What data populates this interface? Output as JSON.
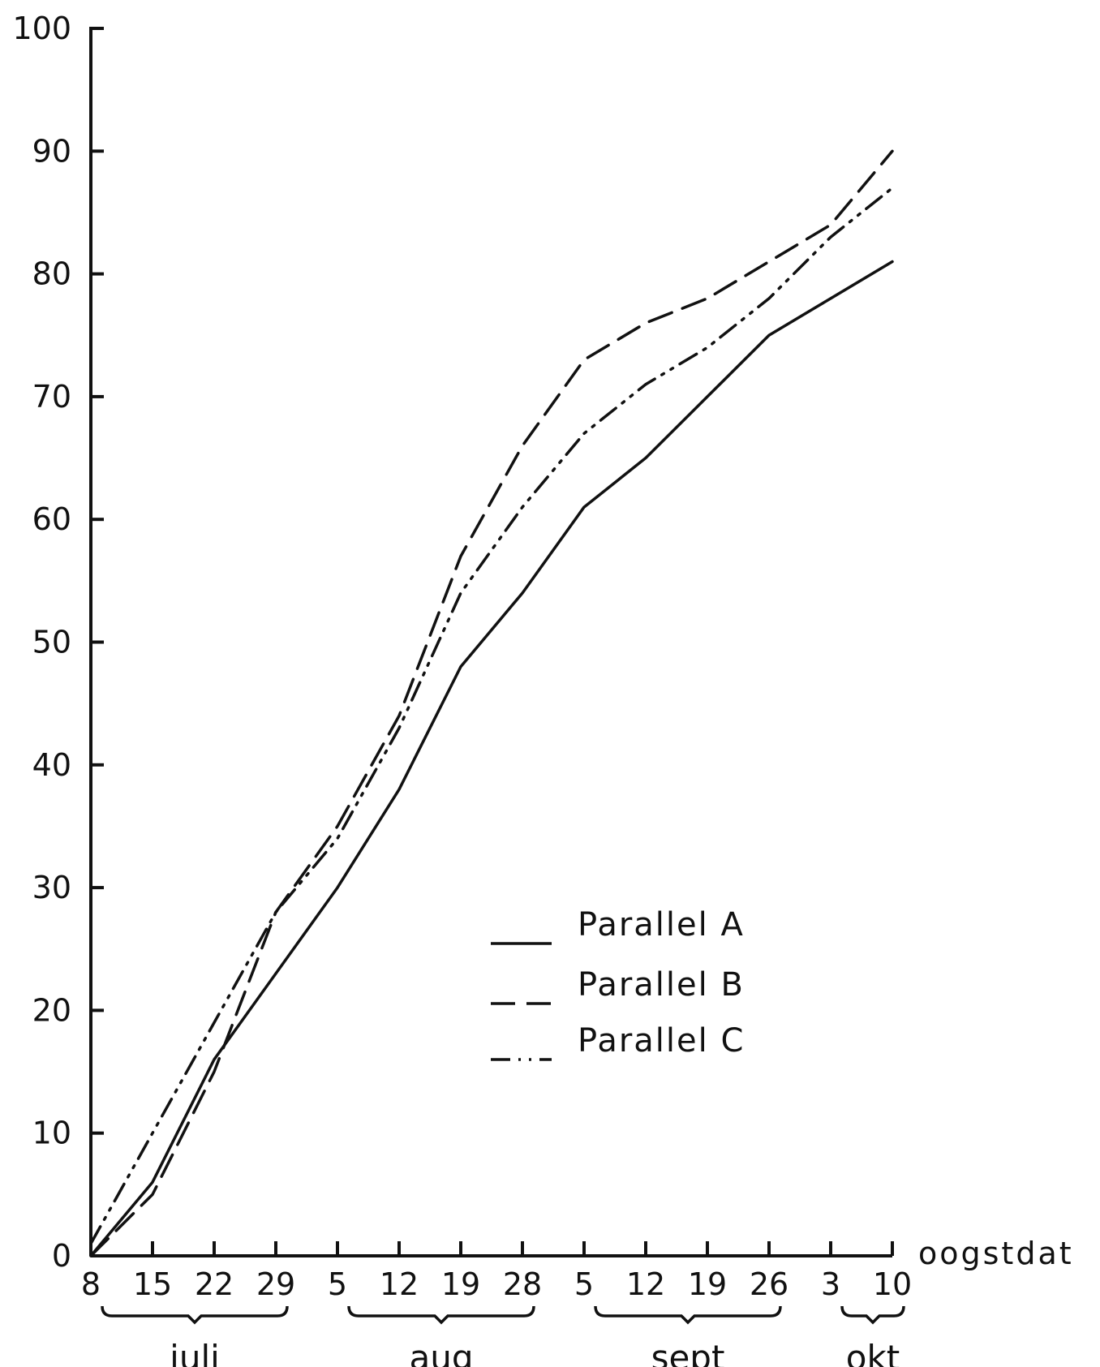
{
  "chart_data": {
    "type": "line",
    "x_title": "oogstdat",
    "x_tick_labels": [
      "8",
      "15",
      "22",
      "29",
      "5",
      "12",
      "19",
      "28",
      "5",
      "12",
      "19",
      "26",
      "3",
      "10"
    ],
    "months": [
      "juli",
      "aug",
      "sept",
      "okt"
    ],
    "y_ticks": [
      0,
      10,
      20,
      30,
      40,
      50,
      60,
      70,
      80,
      90,
      100
    ],
    "ylim": [
      0,
      100
    ],
    "grid": false,
    "legend_position": "center-right",
    "series": [
      {
        "name": "Parallel A",
        "style": "solid",
        "values": [
          0,
          6,
          16,
          23,
          30,
          38,
          48,
          54,
          61,
          65,
          70,
          75,
          78,
          81
        ]
      },
      {
        "name": "Parallel B",
        "style": "dashed",
        "values": [
          0,
          5,
          15,
          28,
          35,
          44,
          57,
          66,
          73,
          76,
          78,
          81,
          84,
          90
        ]
      },
      {
        "name": "Parallel C",
        "style": "dash-dot-dot",
        "values": [
          1,
          10,
          19,
          28,
          34,
          43,
          54,
          61,
          67,
          71,
          74,
          78,
          83,
          87
        ]
      }
    ]
  }
}
